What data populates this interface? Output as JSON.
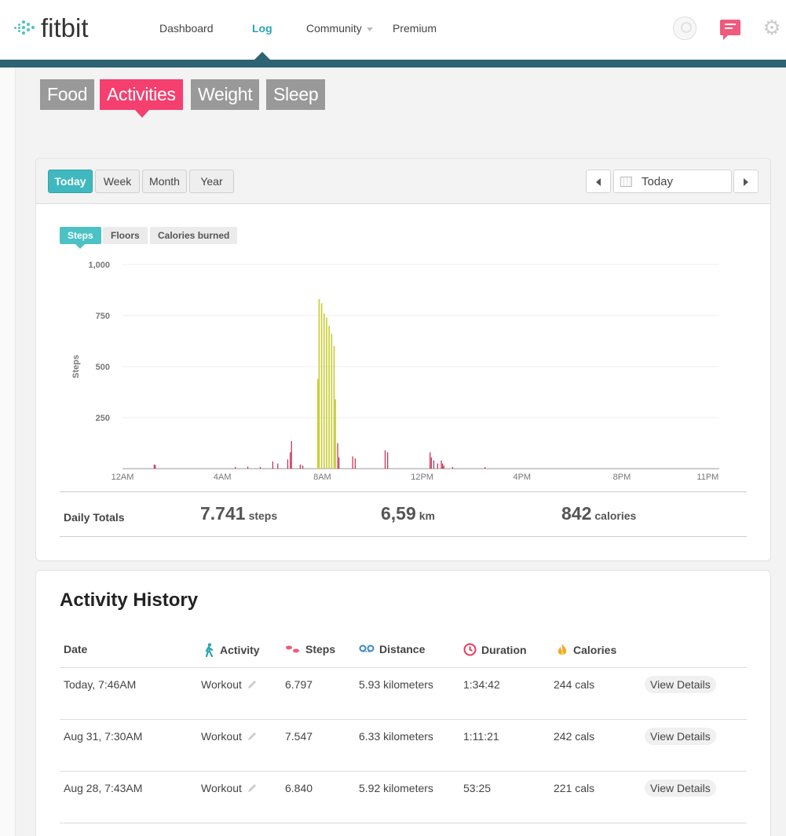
{
  "nav": {
    "logo_text": "fitbit",
    "links": [
      "Dashboard",
      "Log",
      "Community",
      "Premium"
    ]
  },
  "subtabs": [
    "Food",
    "Activities",
    "Weight",
    "Sleep"
  ],
  "range_buttons": [
    "Today",
    "Week",
    "Month",
    "Year"
  ],
  "date_picker": {
    "value": "Today"
  },
  "metric_tabs": [
    "Steps",
    "Floors",
    "Calories burned"
  ],
  "colors": {
    "accent_teal": "#3fb9bf",
    "accent_pink": "#f53f6f",
    "nav_bar": "#2e6373",
    "bar_active": "#c8cc33",
    "bar_light": "#c8274d"
  },
  "chart_data": {
    "type": "bar",
    "ylabel": "Steps",
    "ylim": [
      0,
      1000
    ],
    "y_ticks": [
      "1,000",
      "750",
      "500",
      "250"
    ],
    "x_ticks": [
      "12AM",
      "4AM",
      "8AM",
      "12PM",
      "4PM",
      "8PM",
      "11PM"
    ],
    "x_unit": "hours since midnight",
    "series": [
      {
        "color": "pink",
        "points": [
          [
            1.25,
            20
          ],
          [
            1.3,
            18
          ],
          [
            4.5,
            8
          ],
          [
            5.0,
            10
          ],
          [
            5.5,
            8
          ],
          [
            6.0,
            35
          ],
          [
            6.2,
            25
          ],
          [
            6.6,
            45
          ],
          [
            6.7,
            80
          ],
          [
            6.75,
            135
          ],
          [
            7.1,
            20
          ],
          [
            7.2,
            15
          ],
          [
            8.6,
            125
          ],
          [
            8.65,
            55
          ],
          [
            9.2,
            60
          ],
          [
            9.3,
            50
          ],
          [
            10.5,
            90
          ],
          [
            10.6,
            80
          ],
          [
            12.3,
            80
          ],
          [
            12.35,
            55
          ],
          [
            12.45,
            40
          ],
          [
            12.6,
            25
          ],
          [
            12.75,
            40
          ],
          [
            12.8,
            25
          ],
          [
            12.85,
            15
          ],
          [
            13.2,
            8
          ],
          [
            14.5,
            8
          ]
        ]
      },
      {
        "color": "yellow",
        "points": [
          [
            7.8,
            440
          ],
          [
            7.85,
            830
          ],
          [
            7.95,
            810
          ],
          [
            8.05,
            760
          ],
          [
            8.15,
            740
          ],
          [
            8.25,
            700
          ],
          [
            8.35,
            660
          ],
          [
            8.45,
            600
          ],
          [
            8.5,
            340
          ]
        ]
      }
    ]
  },
  "totals": {
    "label": "Daily Totals",
    "steps_value": "7.741",
    "steps_unit": "steps",
    "distance_value": "6,59",
    "distance_unit": "km",
    "calories_value": "842",
    "calories_unit": "calories"
  },
  "history": {
    "title": "Activity History",
    "columns": [
      "Date",
      "Activity",
      "Steps",
      "Distance",
      "Duration",
      "Calories"
    ],
    "button_label": "View Details",
    "rows": [
      {
        "date": "Today, 7:46AM",
        "activity": "Workout",
        "steps": "6.797",
        "distance": "5.93 kilometers",
        "duration": "1:34:42",
        "calories": "244 cals"
      },
      {
        "date": "Aug 31, 7:30AM",
        "activity": "Workout",
        "steps": "7.547",
        "distance": "6.33 kilometers",
        "duration": "1:11:21",
        "calories": "242 cals"
      },
      {
        "date": "Aug 28, 7:43AM",
        "activity": "Workout",
        "steps": "6.840",
        "distance": "5.92 kilometers",
        "duration": "53:25",
        "calories": "221 cals"
      }
    ]
  }
}
